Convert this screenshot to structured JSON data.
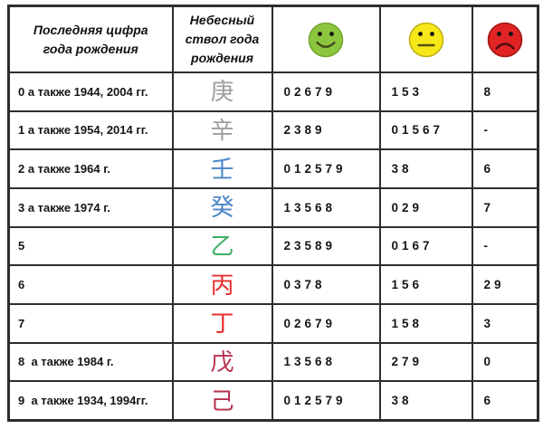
{
  "table": {
    "headers": {
      "last_digit": "Последняя цифра года рождения",
      "heavenly_stem": "Небесный ствол года рождения"
    },
    "faces": [
      {
        "name": "happy-face",
        "meaning": "favorable",
        "fill": "#8cc63e",
        "stroke": "#74a730",
        "eye": "#111111",
        "mouth": "#3f4f1b"
      },
      {
        "name": "neutral-face",
        "meaning": "neutral",
        "fill": "#f6e719",
        "stroke": "#c2b115",
        "eye": "#111111",
        "mouth": "#56500f"
      },
      {
        "name": "sad-face",
        "meaning": "unfavorable",
        "fill": "#e02424",
        "stroke": "#a31616",
        "eye": "#111111",
        "mouth": "#4f0d0d"
      }
    ],
    "rows": [
      {
        "year": "0 а также 1944, 2004 гг.",
        "stem": "庚",
        "stem_color": "#9e9e9e",
        "good": "02679",
        "neutral": "153",
        "bad": "8"
      },
      {
        "year": "1 а также 1954, 2014 гг.",
        "stem": "辛",
        "stem_color": "#9e9e9e",
        "good": "2389",
        "neutral": "01567",
        "bad": "-"
      },
      {
        "year": "2 а также 1964 г.",
        "stem": "壬",
        "stem_color": "#4a86c8",
        "good": "012579",
        "neutral": "38",
        "bad": "6"
      },
      {
        "year": "3 а также 1974 г.",
        "stem": "癸",
        "stem_color": "#4a86c8",
        "good": "13568",
        "neutral": "029",
        "bad": "7"
      },
      {
        "year": "5",
        "stem": "乙",
        "stem_color": "#3fae62",
        "good": "23589",
        "neutral": "0167",
        "bad": "-"
      },
      {
        "year": "6",
        "stem": "丙",
        "stem_color": "#e8302e",
        "good": "0378",
        "neutral": "156",
        "bad": "29"
      },
      {
        "year": "7",
        "stem": "丁",
        "stem_color": "#e8302e",
        "good": "02679",
        "neutral": "158",
        "bad": "3"
      },
      {
        "year": "8  а также 1984 г.",
        "stem": "戊",
        "stem_color": "#b5314f",
        "good": "13568",
        "neutral": "279",
        "bad": "0"
      },
      {
        "year": "9  а также 1934, 1994гг.",
        "stem": "己",
        "stem_color": "#b5314f",
        "good": "012579",
        "neutral": "38",
        "bad": "6"
      }
    ]
  }
}
